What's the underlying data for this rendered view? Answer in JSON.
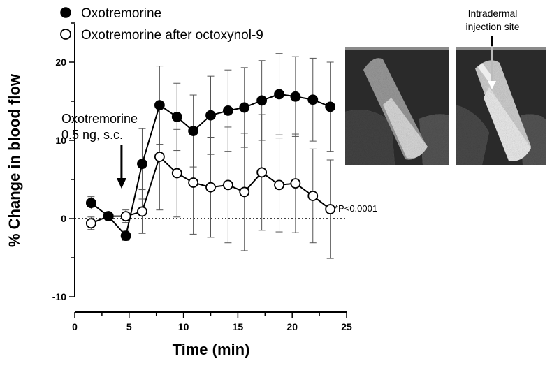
{
  "chart_data": {
    "type": "line",
    "xlabel": "Time (min)",
    "ylabel": "% Change in blood flow",
    "xlim": [
      0,
      25
    ],
    "ylim": [
      -10,
      25
    ],
    "xticks": [
      0,
      5,
      10,
      15,
      20,
      25
    ],
    "yticks": [
      -10,
      0,
      10,
      20
    ],
    "xtick_labels": [
      "0",
      "5",
      "10",
      "15",
      "20",
      "25"
    ],
    "ytick_labels": [
      "-10",
      "0",
      "10",
      "20"
    ],
    "grid": false,
    "legend_position": "top-left",
    "baseline": 0,
    "series": [
      {
        "name": "Oxotremorine",
        "marker": "filled-circle",
        "x": [
          1.5,
          3.1,
          4.7,
          6.2,
          7.8,
          9.4,
          10.9,
          12.5,
          14.1,
          15.6,
          17.2,
          18.8,
          20.3,
          21.9,
          23.5
        ],
        "y": [
          2.0,
          0.3,
          -2.2,
          7.0,
          14.5,
          13.0,
          11.2,
          13.2,
          13.8,
          14.2,
          15.1,
          15.9,
          15.6,
          15.2,
          14.3
        ],
        "err": [
          0.8,
          0.4,
          0.6,
          4.5,
          5.0,
          4.3,
          4.6,
          5.0,
          5.2,
          5.1,
          5.1,
          5.2,
          5.1,
          5.3,
          5.7
        ]
      },
      {
        "name": "Oxotremorine after octoxynol-9",
        "marker": "open-circle",
        "x": [
          1.5,
          3.1,
          4.7,
          6.2,
          7.8,
          9.4,
          10.9,
          12.5,
          14.1,
          15.6,
          17.2,
          18.8,
          20.3,
          21.9,
          23.5
        ],
        "y": [
          -0.6,
          0.3,
          0.3,
          0.9,
          7.9,
          5.8,
          4.6,
          4.0,
          4.3,
          3.4,
          5.9,
          4.3,
          4.5,
          2.9,
          1.2
        ],
        "err": [
          0.8,
          0.5,
          0.8,
          2.8,
          6.8,
          5.6,
          6.6,
          6.4,
          7.4,
          7.5,
          7.4,
          6.0,
          6.3,
          6.0,
          6.3
        ]
      }
    ],
    "annotations": {
      "stimulus_line1": "Oxotremorine",
      "stimulus_line2": "0.5 ng, s.c.",
      "stimulus_x": 4.3,
      "significance": "*P<0.0001",
      "injection_label_line1": "Intradermal",
      "injection_label_line2": "injection site"
    },
    "colors": {
      "ink": "#000000",
      "open_fill": "#ffffff"
    }
  }
}
